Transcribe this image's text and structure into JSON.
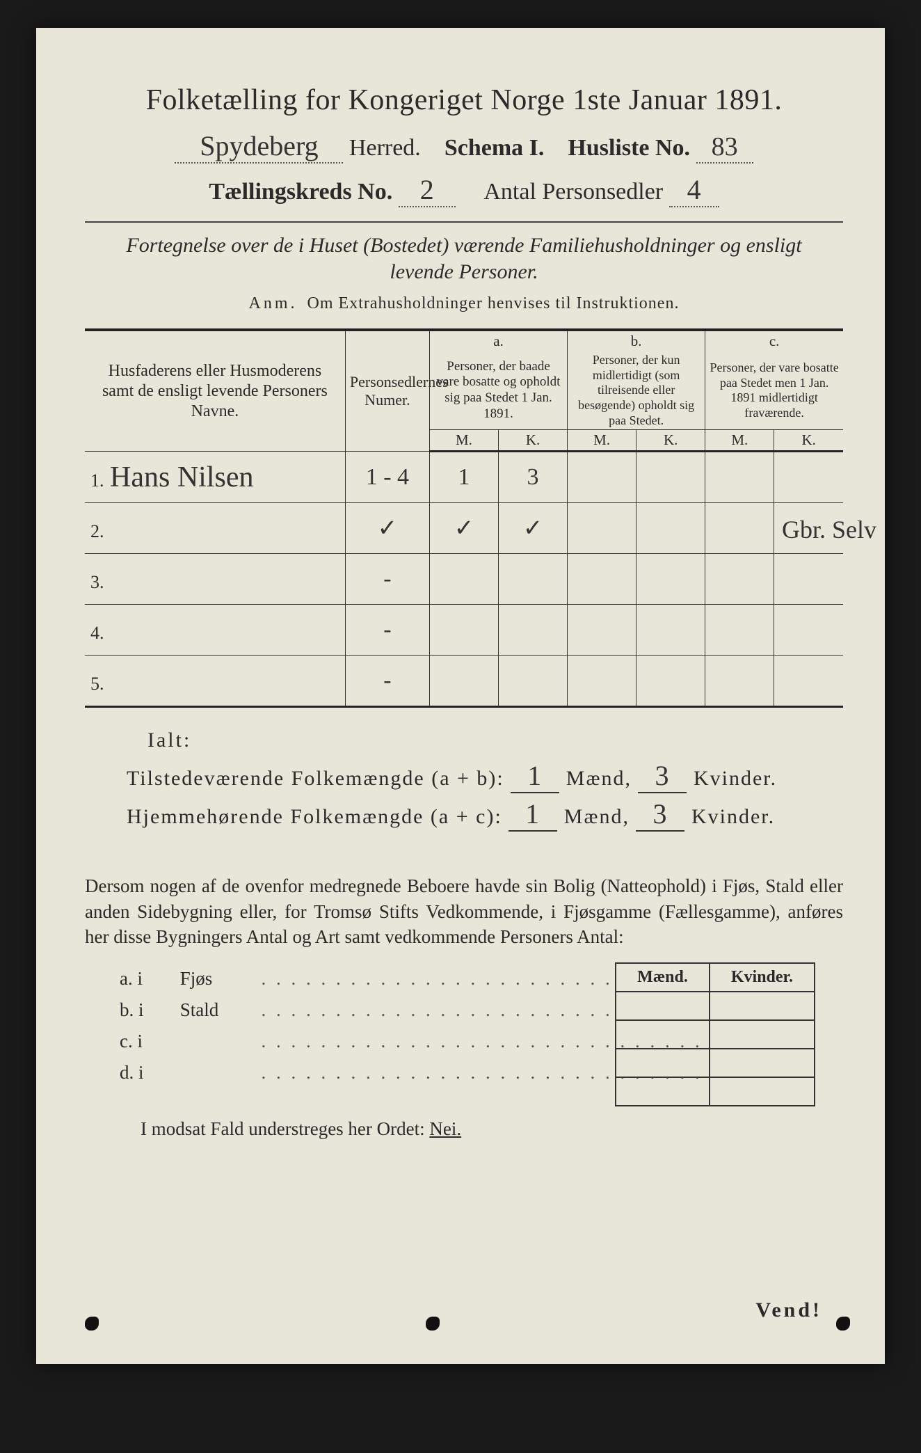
{
  "colors": {
    "paper_bg": "#e8e6d8",
    "ink": "#2a2a2a",
    "rule": "#333333",
    "handwriting": "#333333",
    "outer_bg": "#1a1a1a"
  },
  "typography": {
    "title_fontsize_pt": 32,
    "header_fontsize_pt": 26,
    "body_fontsize_pt": 20,
    "table_header_fontsize_pt": 16,
    "handwriting_family": "Brush Script MT"
  },
  "header": {
    "title": "Folketælling for Kongeriget Norge 1ste Januar 1891.",
    "herred_label": "Herred.",
    "herred_value": "Spydeberg",
    "schema_label": "Schema I.",
    "husliste_label": "Husliste No.",
    "husliste_value": "83",
    "kreds_label": "Tællingskreds No.",
    "kreds_value": "2",
    "personsedler_label": "Antal Personsedler",
    "personsedler_value": "4"
  },
  "subtitle": {
    "line1": "Fortegnelse over de i Huset (Bostedet) værende Familiehusholdninger og ensligt",
    "line2": "levende Personer."
  },
  "anm": {
    "prefix": "Anm.",
    "text": "Om Extrahusholdninger henvises til Instruktionen."
  },
  "table": {
    "type": "table",
    "columns": {
      "names": "Husfaderens eller Husmoderens samt de ensligt levende Personers Navne.",
      "numer": "Personsedlernes Numer.",
      "a_label": "a.",
      "a_text": "Personer, der baade vare bosatte og opholdt sig paa Stedet 1 Jan. 1891.",
      "b_label": "b.",
      "b_text": "Personer, der kun midlertidigt (som tilreisende eller besøgende) opholdt sig paa Stedet.",
      "c_label": "c.",
      "c_text": "Personer, der vare bosatte paa Stedet men 1 Jan. 1891 midlertidigt fraværende.",
      "m": "M.",
      "k": "K."
    },
    "col_widths_pct": [
      34,
      10,
      9,
      9,
      9,
      9,
      9,
      9
    ],
    "rows": [
      {
        "num": "1.",
        "name": "Hans Nilsen",
        "numer": "1 - 4",
        "a_m": "1",
        "a_k": "3",
        "b_m": "",
        "b_k": "",
        "c_m": "",
        "c_k": "",
        "margin_note": "Gbr. Selv"
      },
      {
        "num": "2.",
        "name": "",
        "numer": "✓",
        "a_m": "✓",
        "a_k": "✓",
        "b_m": "",
        "b_k": "",
        "c_m": "",
        "c_k": ""
      },
      {
        "num": "3.",
        "name": "",
        "numer": "-",
        "a_m": "",
        "a_k": "",
        "b_m": "",
        "b_k": "",
        "c_m": "",
        "c_k": ""
      },
      {
        "num": "4.",
        "name": "",
        "numer": "-",
        "a_m": "",
        "a_k": "",
        "b_m": "",
        "b_k": "",
        "c_m": "",
        "c_k": ""
      },
      {
        "num": "5.",
        "name": "",
        "numer": "-",
        "a_m": "",
        "a_k": "",
        "b_m": "",
        "b_k": "",
        "c_m": "",
        "c_k": ""
      }
    ]
  },
  "totals": {
    "ialt": "Ialt:",
    "present_label": "Tilstedeværende Folkemængde (a + b):",
    "resident_label": "Hjemmehørende Folkemængde (a + c):",
    "maend": "Mænd,",
    "kvinder": "Kvinder.",
    "present_m": "1",
    "present_k": "3",
    "resident_m": "1",
    "resident_k": "3"
  },
  "paragraph": "Dersom nogen af de ovenfor medregnede Beboere havde sin Bolig (Natteophold) i Fjøs, Stald eller anden Sidebygning eller, for Tromsø Stifts Vedkommende, i Fjøsgamme (Fællesgamme), anføres her disse Bygningers Antal og Art samt vedkommende Personers Antal:",
  "mk": {
    "m": "Mænd.",
    "k": "Kvinder."
  },
  "abcd": {
    "a": "a.   i",
    "a_label": "Fjøs",
    "b": "b.   i",
    "b_label": "Stald",
    "c": "c.   i",
    "c_label": "",
    "d": "d.   i",
    "d_label": ""
  },
  "modsat": {
    "text": "I modsat Fald understreges her Ordet:",
    "nei": "Nei."
  },
  "vend": "Vend!"
}
